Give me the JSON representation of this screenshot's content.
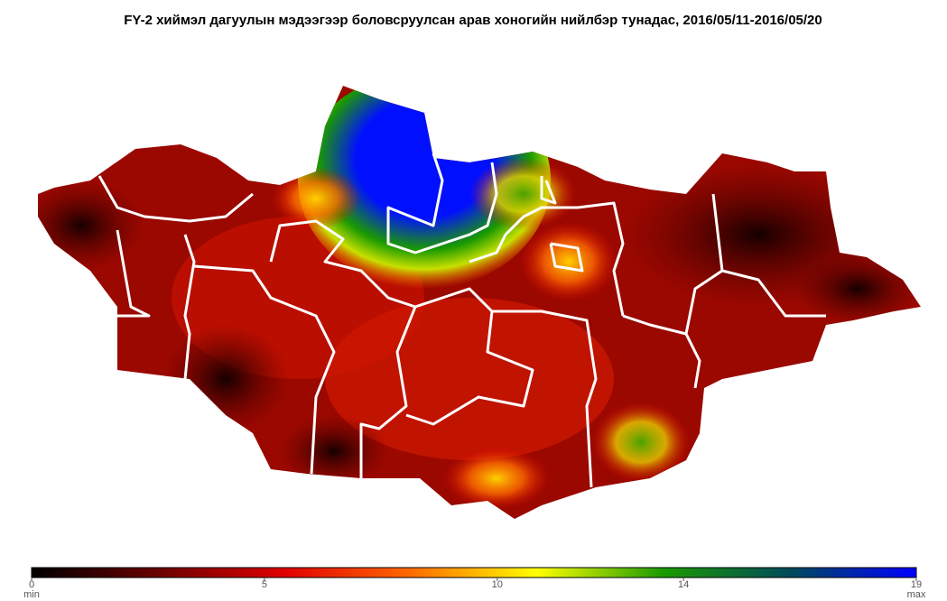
{
  "title": "FY-2 хиймэл дагуулын мэдээгээр боловсруулсан  арав хоногийн нийлбэр тунадас, 2016/05/11-2016/05/20",
  "colorbar": {
    "range": [
      0,
      19
    ],
    "ticks": [
      0,
      5,
      10,
      14,
      19
    ],
    "min_label": "min",
    "max_label": "max",
    "colors": [
      "#000000",
      "#6a0000",
      "#e00000",
      "#ff6a00",
      "#ffff00",
      "#1a9a00",
      "#004a5a",
      "#0000ff"
    ]
  }
}
